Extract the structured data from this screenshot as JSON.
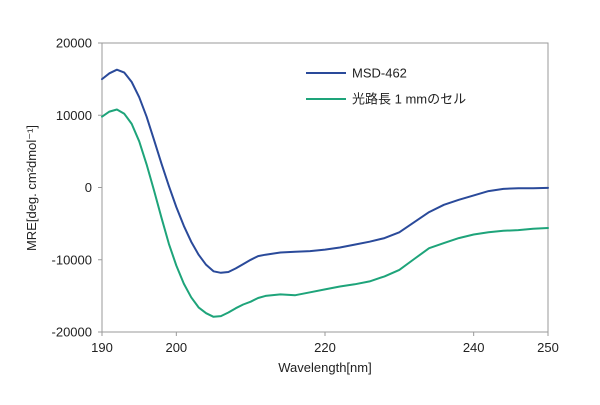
{
  "chart_data": {
    "type": "line",
    "xlabel": "Wavelength[nm]",
    "ylabel": "MRE[deg. cm²dmol⁻¹]",
    "xlim": [
      190,
      250
    ],
    "ylim": [
      -20000,
      20000
    ],
    "xticks": [
      190,
      200,
      220,
      240,
      250
    ],
    "yticks": [
      20000,
      10000,
      0,
      -10000,
      -20000
    ],
    "grid": false,
    "legend_position": "top-right",
    "series": [
      {
        "name": "MSD-462",
        "color": "#2a4a9a",
        "x": [
          190,
          191,
          192,
          193,
          194,
          195,
          196,
          197,
          198,
          199,
          200,
          201,
          202,
          203,
          204,
          205,
          206,
          207,
          208,
          209,
          210,
          211,
          212,
          214,
          216,
          218,
          220,
          222,
          224,
          226,
          228,
          230,
          232,
          234,
          236,
          238,
          240,
          242,
          244,
          246,
          248,
          250
        ],
        "y": [
          15000,
          15800,
          16300,
          15900,
          14600,
          12500,
          9800,
          6600,
          3300,
          200,
          -2700,
          -5300,
          -7500,
          -9300,
          -10700,
          -11600,
          -11800,
          -11700,
          -11200,
          -10600,
          -10000,
          -9500,
          -9300,
          -9000,
          -8900,
          -8800,
          -8600,
          -8300,
          -7900,
          -7500,
          -7000,
          -6200,
          -4800,
          -3400,
          -2400,
          -1700,
          -1100,
          -500,
          -200,
          -100,
          -100,
          -50
        ]
      },
      {
        "name": "光路長 1 mmのセル",
        "color": "#1ea47a",
        "x": [
          190,
          191,
          192,
          193,
          194,
          195,
          196,
          197,
          198,
          199,
          200,
          201,
          202,
          203,
          204,
          205,
          206,
          207,
          208,
          209,
          210,
          211,
          212,
          214,
          216,
          218,
          220,
          222,
          224,
          226,
          228,
          230,
          232,
          234,
          236,
          238,
          240,
          242,
          244,
          246,
          248,
          250
        ],
        "y": [
          9800,
          10500,
          10800,
          10200,
          8800,
          6400,
          3200,
          -400,
          -4200,
          -7800,
          -10800,
          -13300,
          -15200,
          -16600,
          -17400,
          -17900,
          -17800,
          -17300,
          -16700,
          -16200,
          -15800,
          -15300,
          -15000,
          -14800,
          -14900,
          -14500,
          -14100,
          -13700,
          -13400,
          -13000,
          -12300,
          -11400,
          -9900,
          -8400,
          -7700,
          -7000,
          -6500,
          -6200,
          -6000,
          -5900,
          -5700,
          -5600
        ]
      }
    ]
  }
}
